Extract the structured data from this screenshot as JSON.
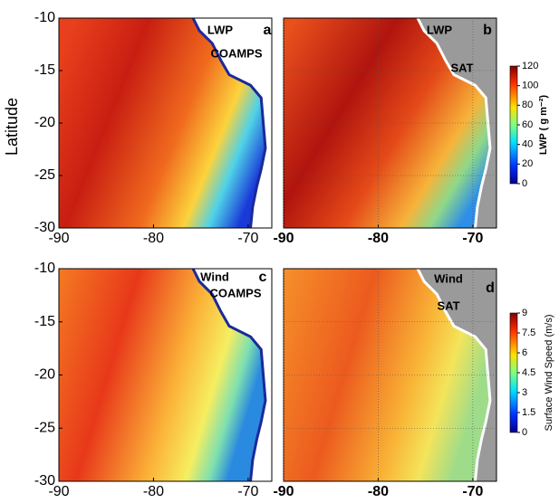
{
  "y_axis_label": "Latitude",
  "panels": [
    {
      "letter": "a",
      "field": "LWP",
      "source": "COAMPS",
      "xlim": [
        -90,
        -67.5
      ],
      "ylim": [
        -30,
        -10
      ],
      "xticks": [
        -90,
        -80,
        -70
      ],
      "yticks": [
        -10,
        -15,
        -20,
        -25,
        -30
      ]
    },
    {
      "letter": "b",
      "field": "LWP",
      "source": "SAT",
      "xlim": [
        -90,
        -67.5
      ],
      "ylim": [
        -30,
        -10
      ],
      "xticks": [
        -90,
        -80,
        -70
      ]
    },
    {
      "letter": "c",
      "field": "Wind",
      "source": "COAMPS",
      "xlim": [
        -90,
        -67.5
      ],
      "ylim": [
        -30,
        -10
      ],
      "xticks": [
        -90,
        -80,
        -70
      ],
      "yticks": [
        -10,
        -15,
        -20,
        -25,
        -30
      ]
    },
    {
      "letter": "d",
      "field": "Wind",
      "source": "SAT",
      "xlim": [
        -90,
        -67.5
      ],
      "ylim": [
        -30,
        -10
      ],
      "xticks": [
        -90,
        -80,
        -70
      ]
    }
  ],
  "colorbars": [
    {
      "label": "LWP ( g m⁻²)",
      "lim": [
        0,
        120
      ],
      "ticks": [
        0,
        20,
        40,
        60,
        80,
        100,
        120
      ]
    },
    {
      "label": "Surface Wind Speed (m/s)",
      "lim": [
        0,
        9
      ],
      "ticks": [
        0,
        1.5,
        3,
        4.5,
        6,
        7.5,
        9
      ]
    }
  ]
}
